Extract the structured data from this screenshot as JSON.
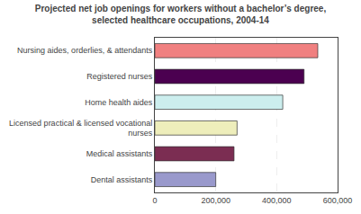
{
  "chart_data": {
    "type": "bar",
    "orientation": "horizontal",
    "title": "Projected net job openings for workers without a bachelor’s degree,\nselected healthcare occupations, 2004-14",
    "categories": [
      "Dental assistants",
      "Medical assistants",
      "Licensed practical & licensed vocational\nnurses",
      "Home health aides",
      "Registered nurses",
      "Nursing aides, orderlies, & attendants"
    ],
    "values": [
      200000,
      260000,
      270000,
      420000,
      490000,
      535000
    ],
    "colors": [
      "#9999cc",
      "#7b2d52",
      "#eeeebb",
      "#cceeee",
      "#4b0050",
      "#f08080"
    ],
    "xlim": [
      0,
      600000
    ],
    "xticks": [
      0,
      {
        "value": 200000,
        "label": "200,000"
      },
      {
        "value": 400000,
        "label": "400,000"
      },
      {
        "value": 600000,
        "label": "600,000"
      }
    ],
    "grid": true
  }
}
